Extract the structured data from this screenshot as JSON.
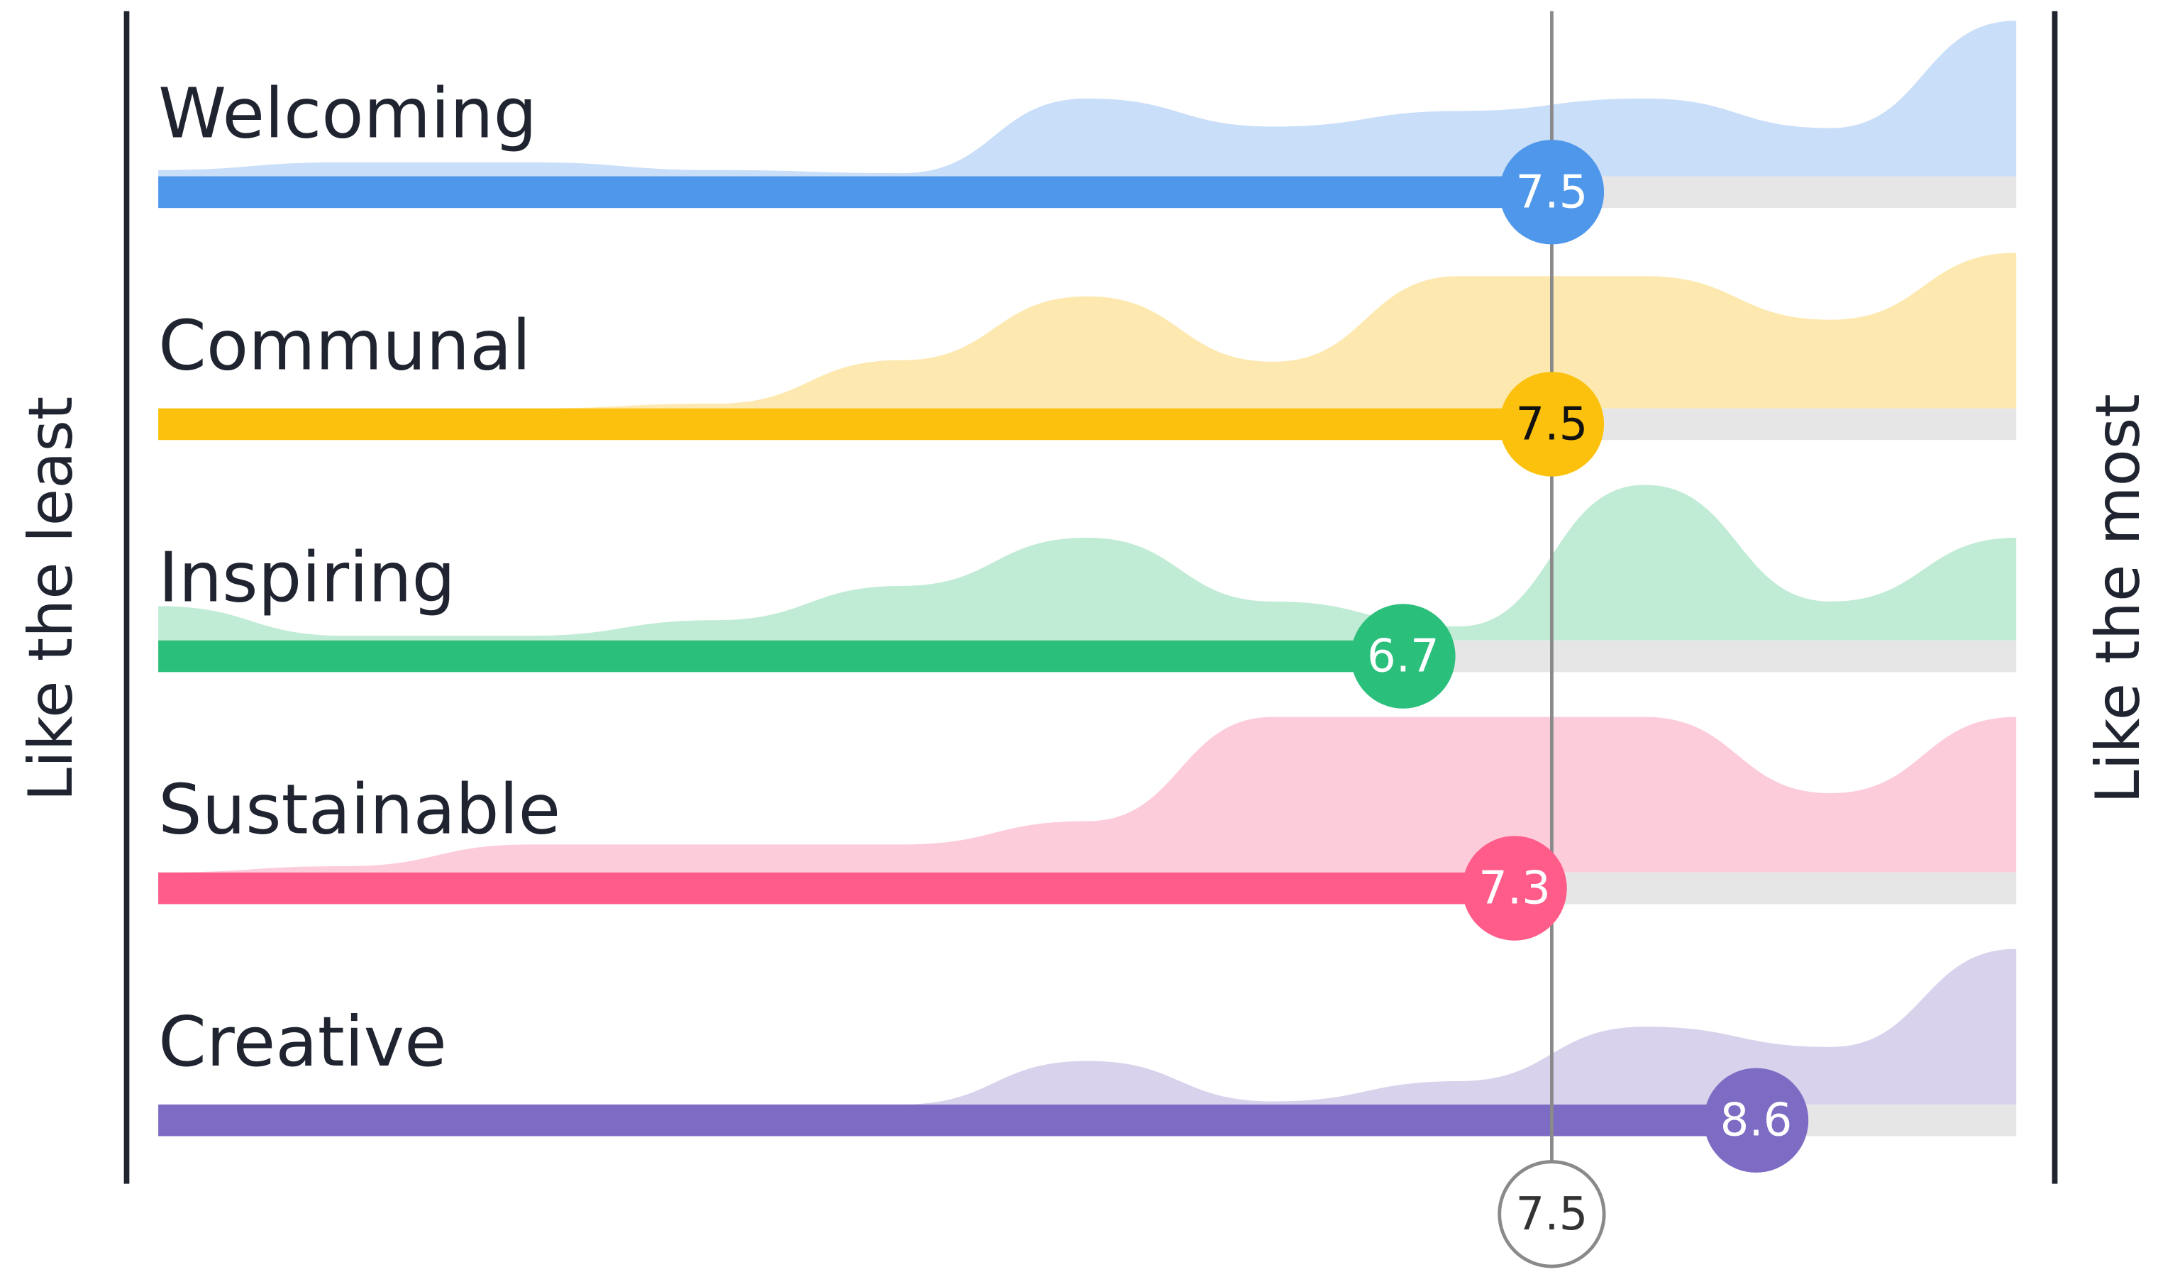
{
  "chart_data": {
    "type": "ridgeline",
    "y_label_left": "Like the least",
    "y_label_right": "Like the most",
    "xlim": [
      0,
      10
    ],
    "categories": [
      "Welcoming",
      "Communal",
      "Inspiring",
      "Sustainable",
      "Creative"
    ],
    "reference": 7.5,
    "density_x": [
      0,
      1,
      2,
      3,
      4,
      5,
      6,
      7,
      8,
      9,
      10
    ],
    "series": [
      {
        "name": "Welcoming",
        "color": "#4f97ea",
        "light_color": "#c9def8",
        "label_color": "#ffffff",
        "value": 7.5,
        "density": [
          0.04,
          0.09,
          0.09,
          0.04,
          0.02,
          0.5,
          0.32,
          0.42,
          0.5,
          0.31,
          1
        ]
      },
      {
        "name": "Communal",
        "color": "#fcc10c",
        "light_color": "#fde9b0",
        "label_color": "#111111",
        "value": 7.5,
        "density": [
          0,
          0,
          0,
          0.03,
          0.31,
          0.72,
          0.3,
          0.85,
          0.85,
          0.57,
          1
        ]
      },
      {
        "name": "Inspiring",
        "color": "#2bbf7c",
        "light_color": "#c0ebd5",
        "label_color": "#ffffff",
        "value": 6.7,
        "density": [
          0.22,
          0.03,
          0.03,
          0.13,
          0.35,
          0.66,
          0.25,
          0.09,
          1,
          0.25,
          0.66
        ]
      },
      {
        "name": "Sustainable",
        "color": "#ff5c8a",
        "light_color": "#fdccdb",
        "label_color": "#ffffff",
        "value": 7.3,
        "density": [
          0,
          0.04,
          0.18,
          0.18,
          0.18,
          0.33,
          1,
          1,
          1,
          0.51,
          1
        ]
      },
      {
        "name": "Creative",
        "color": "#7e6bc4",
        "light_color": "#d8d2ec",
        "label_color": "#ffffff",
        "value": 8.6,
        "density": [
          0,
          0,
          0,
          0,
          0,
          0.28,
          0.02,
          0.15,
          0.5,
          0.37,
          1
        ]
      }
    ]
  }
}
